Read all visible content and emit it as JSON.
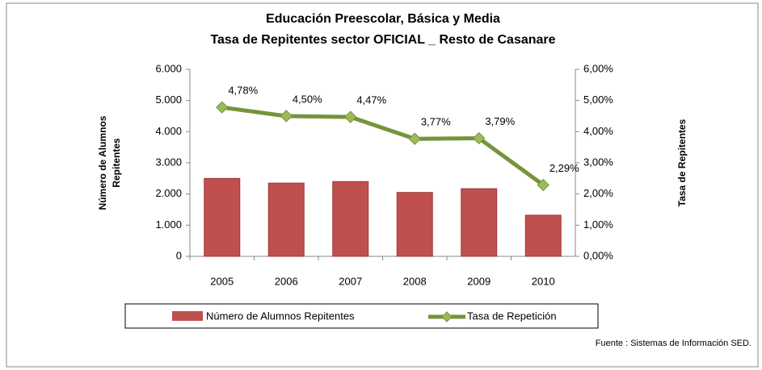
{
  "chart_data": {
    "type": "bar_line",
    "title": [
      "Educación Preescolar, Básica y Media",
      "Tasa de  Repitentes sector OFICIAL  _ Resto de Casanare"
    ],
    "y_label": [
      "Número de Alumnos",
      "Repitentes"
    ],
    "y2_label": "Tasa de Repitentes",
    "categories": [
      "2005",
      "2006",
      "2007",
      "2008",
      "2009",
      "2010"
    ],
    "series": [
      {
        "name": "Número de Alumnos Repitentes",
        "type": "bar",
        "color": "#c0504d",
        "values": [
          2500,
          2350,
          2400,
          2050,
          2170,
          1320
        ]
      },
      {
        "name": "Tasa de Repetición",
        "type": "line",
        "axis": "y2",
        "color": "#77933c",
        "marker_color": "#9bbb59",
        "values": [
          4.78,
          4.5,
          4.47,
          3.77,
          3.79,
          2.29
        ],
        "value_labels": [
          "4,78%",
          "4,50%",
          "4,47%",
          "3,77%",
          "3,79%",
          "2,29%"
        ]
      }
    ],
    "ylim": [
      0,
      6000
    ],
    "yticks": [
      0,
      {
        "value": 1000,
        "label": "1.000"
      },
      {
        "value": 2000,
        "label": "2.000"
      },
      {
        "value": 3000,
        "label": "3.000"
      },
      {
        "value": 4000,
        "label": "4.000"
      },
      {
        "value": 5000,
        "label": "5.000"
      },
      {
        "value": 6000,
        "label": "6.000"
      }
    ],
    "y2lim": [
      0,
      6
    ],
    "y2ticks": [
      {
        "value": 0,
        "label": "0,00%"
      },
      {
        "value": 1,
        "label": "1,00%"
      },
      {
        "value": 2,
        "label": "2,00%"
      },
      {
        "value": 3,
        "label": "3,00%"
      },
      {
        "value": 4,
        "label": "4,00%"
      },
      {
        "value": 5,
        "label": "5,00%"
      },
      {
        "value": 6,
        "label": "6,00%"
      }
    ],
    "source": "Fuente :  Sistemas de Información SED."
  }
}
